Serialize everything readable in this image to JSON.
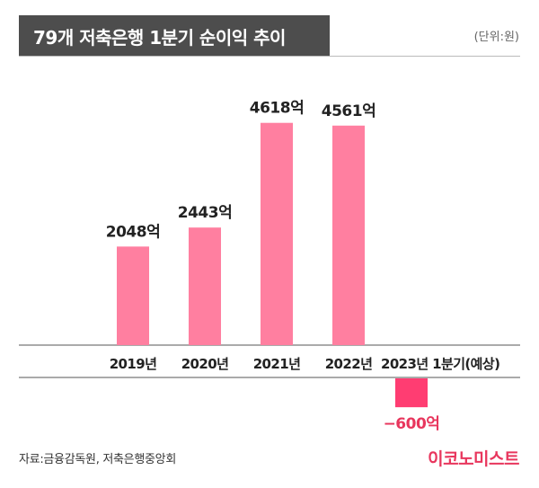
{
  "header": {
    "title": "79개 저축은행 1분기 순이익 추이",
    "unit": "(단위:원)"
  },
  "footer": {
    "source": "자료:금융감독원, 저축은행중앙회",
    "logo_text": "이코노미스트"
  },
  "colors": {
    "positive_bar": "#ff7fa0",
    "negative_bar": "#ff3d72",
    "negative_label": "#e8365d",
    "title_bar": "#4d4d4d"
  },
  "chart_data": {
    "type": "bar",
    "categories": [
      "2019년",
      "2020년",
      "2021년",
      "2022년",
      "2023년 1분기(예상)"
    ],
    "values": [
      2048,
      2443,
      4618,
      4561,
      -600
    ],
    "value_labels": [
      "2048억",
      "2443억",
      "4618억",
      "4561억",
      "−600억"
    ],
    "title": "79개 저축은행 1분기 순이익 추이",
    "unit": "억",
    "grid": false,
    "legend": "none"
  }
}
